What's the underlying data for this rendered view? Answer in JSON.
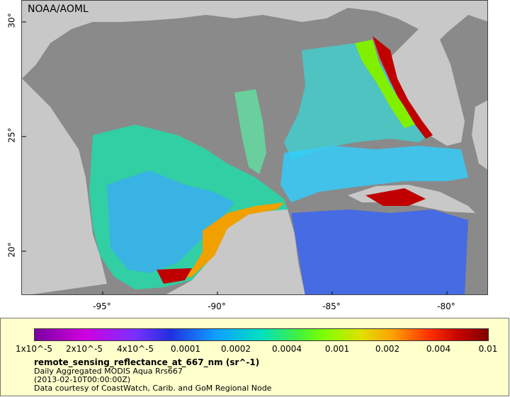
{
  "map": {
    "org_label": "NOAA/AOML",
    "lat_labels": [
      "30°",
      "25°",
      "20°"
    ],
    "lon_labels": [
      "-95°",
      "-90°",
      "-85°",
      "-80°"
    ]
  },
  "legend": {
    "ticks": [
      "1x10^-5",
      "2x10^-5",
      "4x10^-5",
      "0.0001",
      "0.0002",
      "0.0004",
      "0.001",
      "0.002",
      "0.004",
      "0.01"
    ],
    "variable": "remote_sensing_reflectance_at_667_nm (sr^-1)",
    "product": "Daily Aggregated MODIS Aqua Rrs667",
    "time": "(2013-02-10T00:00:00Z)",
    "credit": "Data courtesy of CoastWatch, Carib. and GoM Regional Node"
  },
  "colors": {
    "land": "#c8c8c8",
    "nodata": "#8a8a8a",
    "coast_high": "#c00000",
    "background": "#ffffcc"
  }
}
